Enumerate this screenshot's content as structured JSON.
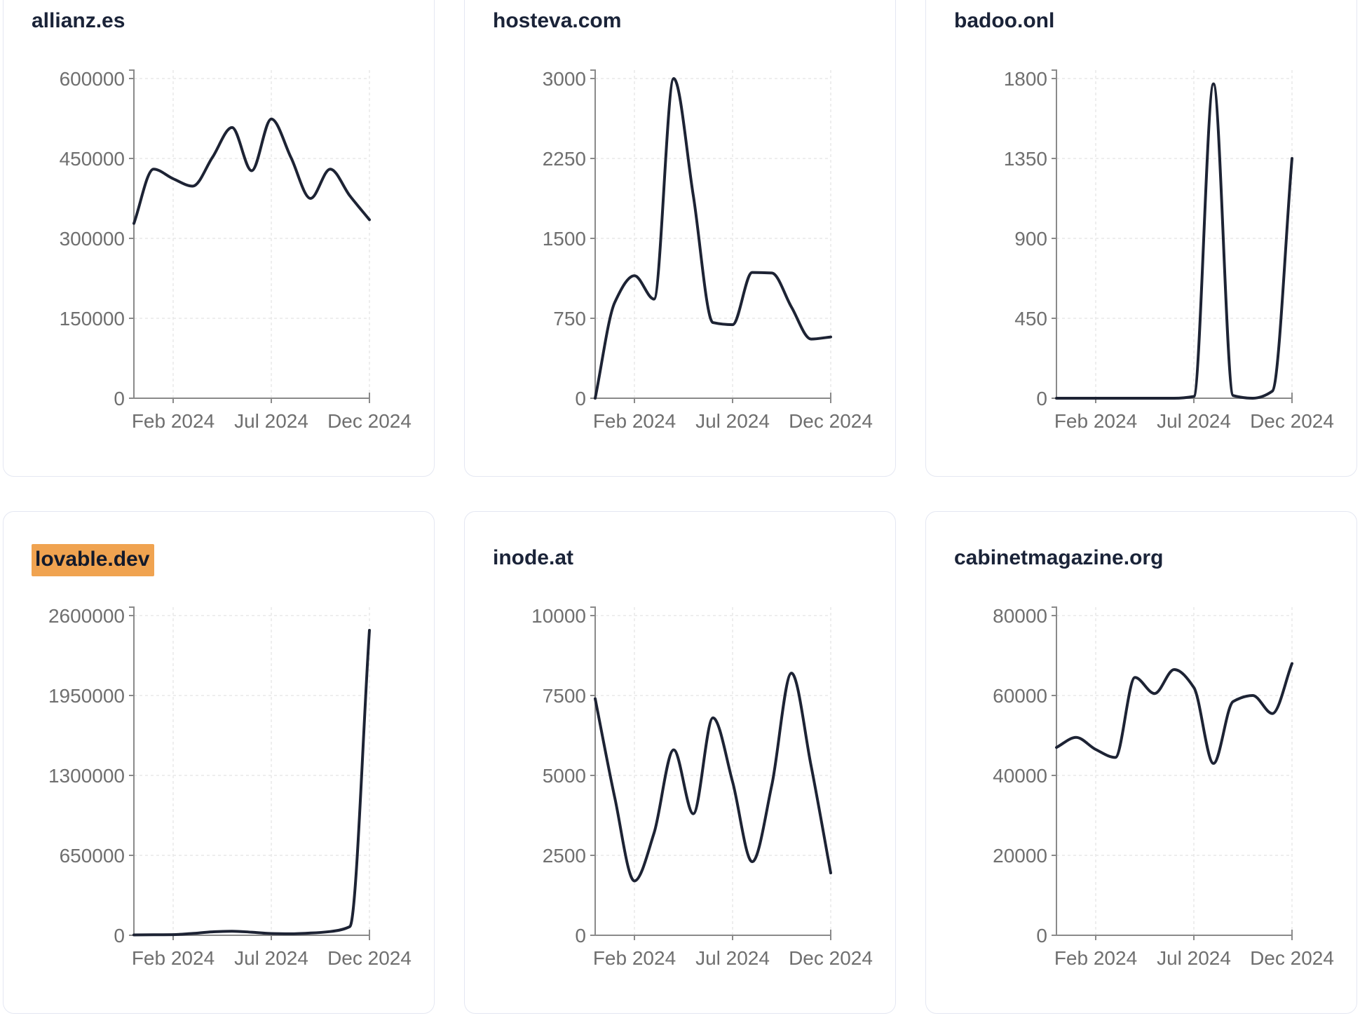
{
  "style": {
    "line_color": "#1d2334",
    "title_color": "#1a2338",
    "highlight_color": "#f0a350",
    "tick_label_color": "#6f6f6f",
    "axis_color": "#8a8a8a",
    "grid_color": "#e9e9e9",
    "card_border_color": "#e4e7f2",
    "background": "#ffffff"
  },
  "x_axis": {
    "tick_labels": [
      "Feb 2024",
      "Jul 2024",
      "Dec 2024"
    ],
    "tick_month_indices": [
      2,
      7,
      12
    ]
  },
  "months": [
    "Dec 2023",
    "Jan 2024",
    "Feb 2024",
    "Mar 2024",
    "Apr 2024",
    "May 2024",
    "Jun 2024",
    "Jul 2024",
    "Aug 2024",
    "Sep 2024",
    "Oct 2024",
    "Nov 2024",
    "Dec 2024"
  ],
  "chart_data": [
    {
      "type": "line",
      "title": "allianz.es",
      "highlighted": false,
      "x": [
        "Dec 2023",
        "Jan 2024",
        "Feb 2024",
        "Mar 2024",
        "Apr 2024",
        "May 2024",
        "Jun 2024",
        "Jul 2024",
        "Aug 2024",
        "Sep 2024",
        "Oct 2024",
        "Nov 2024",
        "Dec 2024"
      ],
      "x_tick_labels": [
        "Feb 2024",
        "Jul 2024",
        "Dec 2024"
      ],
      "y_ticks": [
        0,
        150000,
        300000,
        450000,
        600000
      ],
      "ylim": [
        0,
        600000
      ],
      "grid": true,
      "values": [
        328000,
        430000,
        412000,
        398000,
        452000,
        508000,
        427000,
        524000,
        452000,
        375000,
        430000,
        380000,
        335000
      ]
    },
    {
      "type": "line",
      "title": "hosteva.com",
      "highlighted": false,
      "x": [
        "Dec 2023",
        "Jan 2024",
        "Feb 2024",
        "Mar 2024",
        "Apr 2024",
        "May 2024",
        "Jun 2024",
        "Jul 2024",
        "Aug 2024",
        "Sep 2024",
        "Oct 2024",
        "Nov 2024",
        "Dec 2024"
      ],
      "x_tick_labels": [
        "Feb 2024",
        "Jul 2024",
        "Dec 2024"
      ],
      "y_ticks": [
        0,
        750,
        1500,
        2250,
        3000
      ],
      "ylim": [
        0,
        3000
      ],
      "grid": true,
      "values": [
        0,
        900,
        1150,
        930,
        3000,
        1900,
        710,
        690,
        1180,
        1175,
        855,
        555,
        575
      ]
    },
    {
      "type": "line",
      "title": "badoo.onl",
      "highlighted": false,
      "x": [
        "Dec 2023",
        "Jan 2024",
        "Feb 2024",
        "Mar 2024",
        "Apr 2024",
        "May 2024",
        "Jun 2024",
        "Jul 2024",
        "Aug 2024",
        "Sep 2024",
        "Oct 2024",
        "Nov 2024",
        "Dec 2024"
      ],
      "x_tick_labels": [
        "Feb 2024",
        "Jul 2024",
        "Dec 2024"
      ],
      "y_ticks": [
        0,
        450,
        900,
        1350,
        1800
      ],
      "ylim": [
        0,
        1800
      ],
      "grid": true,
      "values": [
        0,
        0,
        0,
        0,
        0,
        0,
        0,
        10,
        1770,
        15,
        0,
        40,
        1350
      ]
    },
    {
      "type": "line",
      "title": "lovable.dev",
      "highlighted": true,
      "x": [
        "Dec 2023",
        "Jan 2024",
        "Feb 2024",
        "Mar 2024",
        "Apr 2024",
        "May 2024",
        "Jun 2024",
        "Jul 2024",
        "Aug 2024",
        "Sep 2024",
        "Oct 2024",
        "Nov 2024",
        "Dec 2024"
      ],
      "x_tick_labels": [
        "Feb 2024",
        "Jul 2024",
        "Dec 2024"
      ],
      "y_ticks": [
        0,
        650000,
        1300000,
        1950000,
        2600000
      ],
      "ylim": [
        0,
        2600000
      ],
      "grid": true,
      "values": [
        3000,
        4000,
        5000,
        15000,
        28000,
        33000,
        25000,
        14000,
        12000,
        18000,
        30000,
        70000,
        2480000
      ]
    },
    {
      "type": "line",
      "title": "inode.at",
      "highlighted": false,
      "x": [
        "Dec 2023",
        "Jan 2024",
        "Feb 2024",
        "Mar 2024",
        "Apr 2024",
        "May 2024",
        "Jun 2024",
        "Jul 2024",
        "Aug 2024",
        "Sep 2024",
        "Oct 2024",
        "Nov 2024",
        "Dec 2024"
      ],
      "x_tick_labels": [
        "Feb 2024",
        "Jul 2024",
        "Dec 2024"
      ],
      "y_ticks": [
        0,
        2500,
        5000,
        7500,
        10000
      ],
      "ylim": [
        0,
        10000
      ],
      "grid": true,
      "values": [
        7400,
        4300,
        1700,
        3200,
        5800,
        3800,
        6800,
        4800,
        2300,
        4700,
        8200,
        5300,
        1950
      ]
    },
    {
      "type": "line",
      "title": "cabinetmagazine.org",
      "highlighted": false,
      "x": [
        "Dec 2023",
        "Jan 2024",
        "Feb 2024",
        "Mar 2024",
        "Apr 2024",
        "May 2024",
        "Jun 2024",
        "Jul 2024",
        "Aug 2024",
        "Sep 2024",
        "Oct 2024",
        "Nov 2024",
        "Dec 2024"
      ],
      "x_tick_labels": [
        "Feb 2024",
        "Jul 2024",
        "Dec 2024"
      ],
      "y_ticks": [
        0,
        20000,
        40000,
        60000,
        80000
      ],
      "ylim": [
        0,
        80000
      ],
      "grid": true,
      "values": [
        47000,
        49500,
        46500,
        44500,
        64500,
        60500,
        66500,
        62000,
        43000,
        58500,
        60000,
        55500,
        68000
      ]
    }
  ]
}
